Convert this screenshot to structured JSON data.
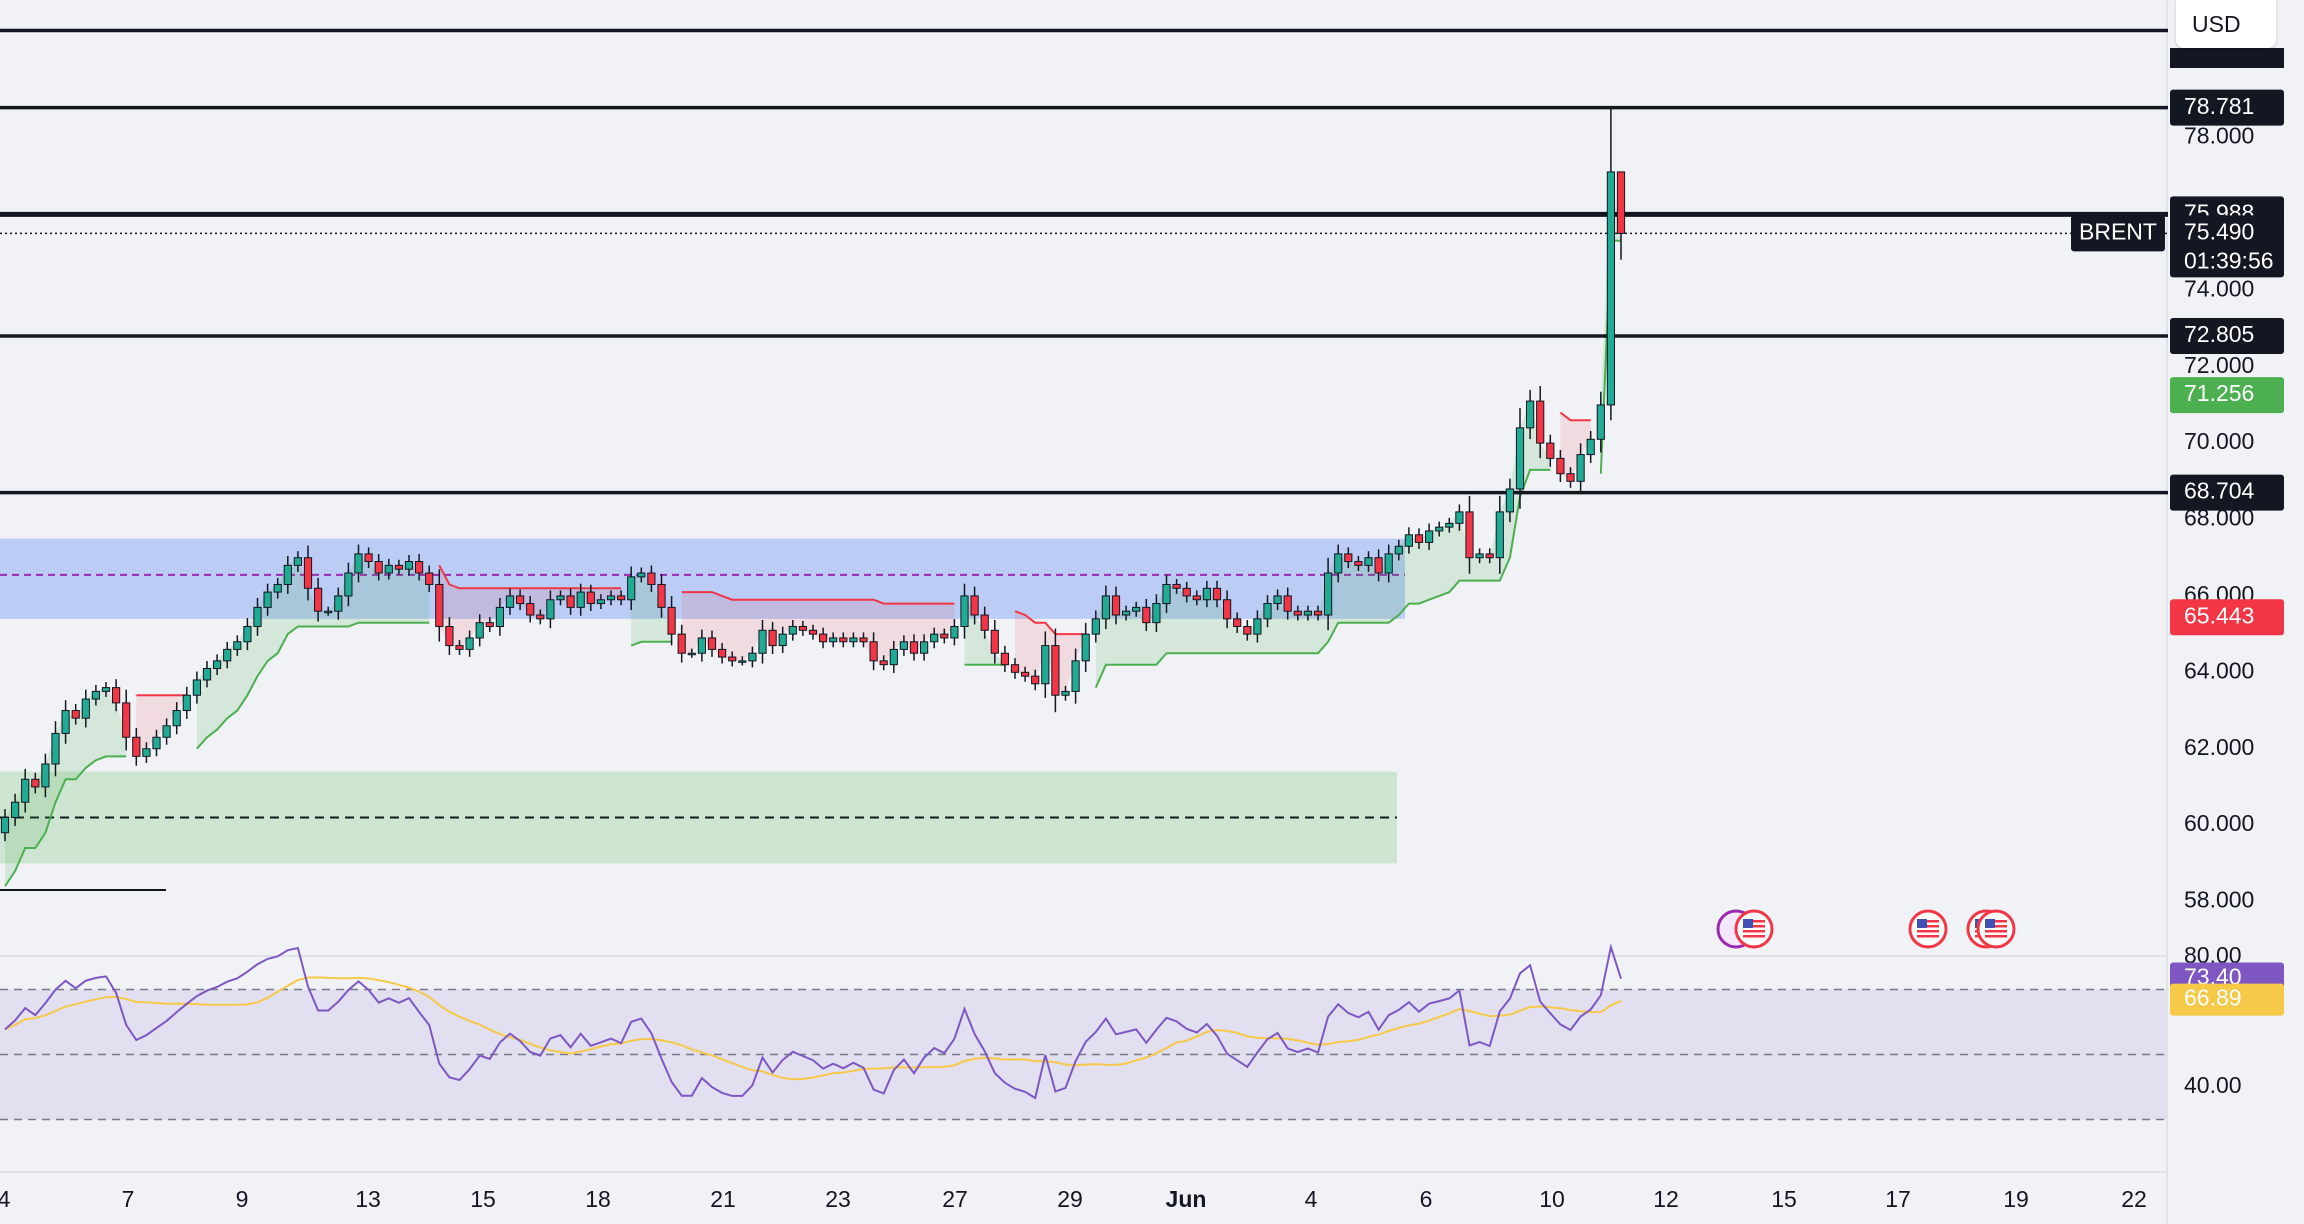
{
  "toolbar": {
    "currency": "USD"
  },
  "colors": {
    "bull": "#22ab94",
    "bear": "#f23645",
    "rsi": "#7e57c2",
    "rsi_ma": "#f7c948",
    "trail_up": "#4caf50",
    "trail_down": "#f23645",
    "supply_zone": "#b2c6f5",
    "demand_zone": "#cbe5cf"
  },
  "chart_data": [
    {
      "type": "candlestick",
      "symbol": "BRENT",
      "price_axis": {
        "range": [
          56.6,
          81.6
        ],
        "ticks": [
          "58.000",
          "60.000",
          "62.000",
          "64.000",
          "66.000",
          "68.000",
          "70.000",
          "72.000",
          "74.000",
          "76.000",
          "78.000"
        ]
      },
      "time_axis": {
        "ticks": [
          "4",
          "7",
          "9",
          "13",
          "15",
          "18",
          "21",
          "23",
          "27",
          "29",
          "Jun",
          "4",
          "6",
          "10",
          "12",
          "15",
          "17",
          "19",
          "22"
        ]
      },
      "horizontal_levels": [
        80.8,
        78.781,
        75.988,
        72.805,
        68.704
      ],
      "price_tags": [
        {
          "value": "78.781",
          "style": "level"
        },
        {
          "value": "75.988",
          "style": "level"
        },
        {
          "value": "75.490",
          "style": "last",
          "countdown": "01:39:56"
        },
        {
          "value": "72.805",
          "style": "level"
        },
        {
          "value": "71.256",
          "style": "trail"
        },
        {
          "value": "68.704",
          "style": "level"
        },
        {
          "value": "65.443",
          "style": "bear"
        }
      ],
      "symbol_tag": "BRENT",
      "supply_zone": {
        "top": 67.5,
        "bottom": 65.4,
        "mid": 66.55
      },
      "demand_zone": {
        "top": 61.4,
        "bottom": 59.0,
        "mid": 60.2
      },
      "first_open": 59.8,
      "closes": [
        60.2,
        60.6,
        61.2,
        61.0,
        61.6,
        62.4,
        63.0,
        62.8,
        63.3,
        63.5,
        63.6,
        63.2,
        62.3,
        61.8,
        62.0,
        62.3,
        62.6,
        63.0,
        63.4,
        63.8,
        64.1,
        64.3,
        64.6,
        64.8,
        65.2,
        65.7,
        66.1,
        66.3,
        66.8,
        67.0,
        66.2,
        65.6,
        65.6,
        66.0,
        66.6,
        67.1,
        66.9,
        66.6,
        66.8,
        66.7,
        66.9,
        66.6,
        66.3,
        65.2,
        64.7,
        64.6,
        64.9,
        65.3,
        65.2,
        65.7,
        66.0,
        65.8,
        65.5,
        65.4,
        65.9,
        66.0,
        65.7,
        66.1,
        65.8,
        65.9,
        66.0,
        65.9,
        66.5,
        66.6,
        66.3,
        65.7,
        65.0,
        64.5,
        64.5,
        64.9,
        64.6,
        64.4,
        64.3,
        64.3,
        64.5,
        65.1,
        64.7,
        65.0,
        65.2,
        65.1,
        65.0,
        64.8,
        64.9,
        64.8,
        64.9,
        64.8,
        64.3,
        64.2,
        64.6,
        64.8,
        64.5,
        64.8,
        65.0,
        64.9,
        65.2,
        66.0,
        65.5,
        65.1,
        64.5,
        64.2,
        64.0,
        63.9,
        63.7,
        64.7,
        63.4,
        63.5,
        64.3,
        65.0,
        65.4,
        66.0,
        65.5,
        65.6,
        65.7,
        65.3,
        65.8,
        66.3,
        66.2,
        66.0,
        65.9,
        66.2,
        65.9,
        65.4,
        65.2,
        65.0,
        65.4,
        65.8,
        66.0,
        65.6,
        65.5,
        65.6,
        65.5,
        66.6,
        67.1,
        66.9,
        66.8,
        67.0,
        66.6,
        67.1,
        67.3,
        67.6,
        67.4,
        67.7,
        67.8,
        67.9,
        68.2,
        67.0,
        67.1,
        67.0,
        68.2,
        68.8,
        70.4,
        71.1,
        70.0,
        69.6,
        69.2,
        69.0,
        69.7,
        70.1,
        71.0,
        77.1,
        75.49
      ],
      "rsi": {
        "levels": [
          70,
          50,
          30
        ],
        "value": "73.40",
        "ma_value": "66.89",
        "ticks": [
          "80.00",
          "40.00"
        ]
      }
    }
  ]
}
